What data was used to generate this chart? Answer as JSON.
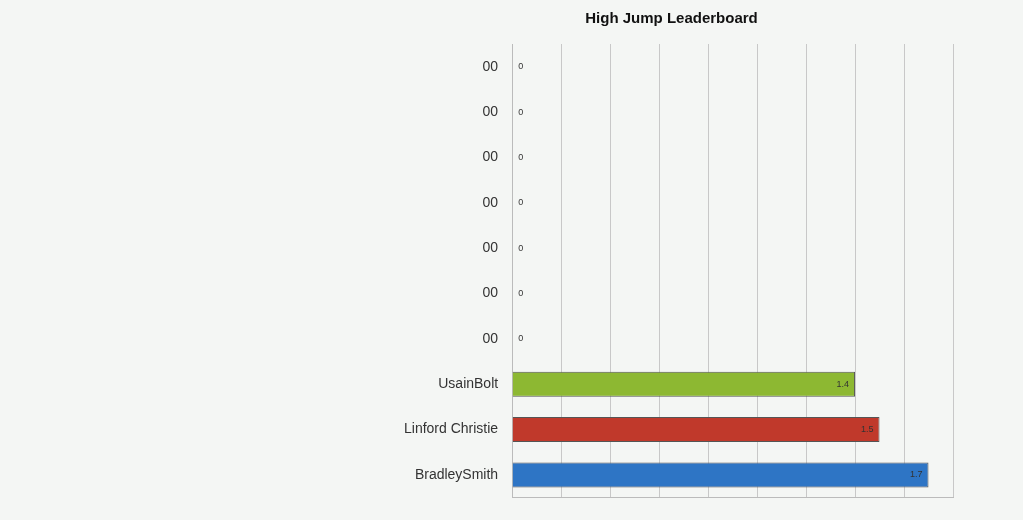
{
  "chart_data": {
    "type": "bar",
    "orientation": "horizontal",
    "title": "High Jump Leaderboard",
    "categories": [
      "00",
      "00",
      "00",
      "00",
      "00",
      "00",
      "00",
      "UsainBolt",
      "Linford Christie",
      "BradleySmith"
    ],
    "values": [
      0,
      0,
      0,
      0,
      0,
      0,
      0,
      1.4,
      1.5,
      1.7
    ],
    "colors": [
      "#8db832",
      "#c0392b",
      "#2e75c5",
      "#8db832",
      "#c0392b",
      "#2e75c5",
      "#8db832",
      "#8db832",
      "#c0392b",
      "#2e75c5"
    ],
    "tick_labels": "y",
    "grid": "x",
    "legend": false,
    "data_labels": true
  }
}
